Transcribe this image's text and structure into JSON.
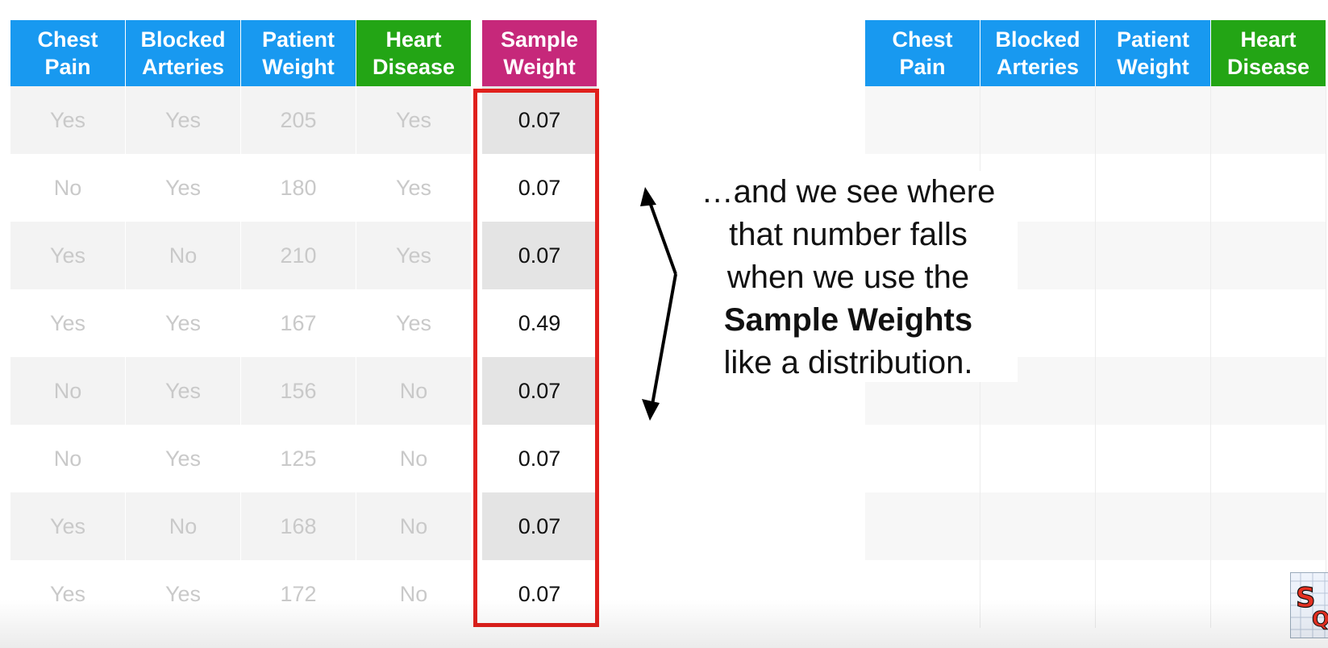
{
  "left_table": {
    "headers": [
      {
        "line1": "Chest",
        "line2": "Pain",
        "color": "#1899f0"
      },
      {
        "line1": "Blocked",
        "line2": "Arteries",
        "color": "#1899f0"
      },
      {
        "line1": "Patient",
        "line2": "Weight",
        "color": "#1899f0"
      },
      {
        "line1": "Heart",
        "line2": "Disease",
        "color": "#23a515"
      }
    ],
    "rows": [
      [
        "Yes",
        "Yes",
        "205",
        "Yes"
      ],
      [
        "No",
        "Yes",
        "180",
        "Yes"
      ],
      [
        "Yes",
        "No",
        "210",
        "Yes"
      ],
      [
        "Yes",
        "Yes",
        "167",
        "Yes"
      ],
      [
        "No",
        "Yes",
        "156",
        "No"
      ],
      [
        "No",
        "Yes",
        "125",
        "No"
      ],
      [
        "Yes",
        "No",
        "168",
        "No"
      ],
      [
        "Yes",
        "Yes",
        "172",
        "No"
      ]
    ]
  },
  "sample_weight": {
    "header": {
      "line1": "Sample",
      "line2": "Weight",
      "color": "#c6287a"
    },
    "values": [
      "0.07",
      "0.07",
      "0.07",
      "0.49",
      "0.07",
      "0.07",
      "0.07",
      "0.07"
    ],
    "highlight_color": "#e0201c"
  },
  "callout": {
    "line1": "…and we see where",
    "line2": "that number falls",
    "line3": "when we use the",
    "line4_bold": "Sample Weights",
    "line5": "like a distribution."
  },
  "right_table": {
    "headers": [
      {
        "line1": "Chest",
        "line2": "Pain",
        "color": "#1899f0"
      },
      {
        "line1": "Blocked",
        "line2": "Arteries",
        "color": "#1899f0"
      },
      {
        "line1": "Patient",
        "line2": "Weight",
        "color": "#1899f0"
      },
      {
        "line1": "Heart",
        "line2": "Disease",
        "color": "#23a515"
      }
    ],
    "row_count": 8
  },
  "logo": {
    "icon": "statquest-logo-icon"
  }
}
